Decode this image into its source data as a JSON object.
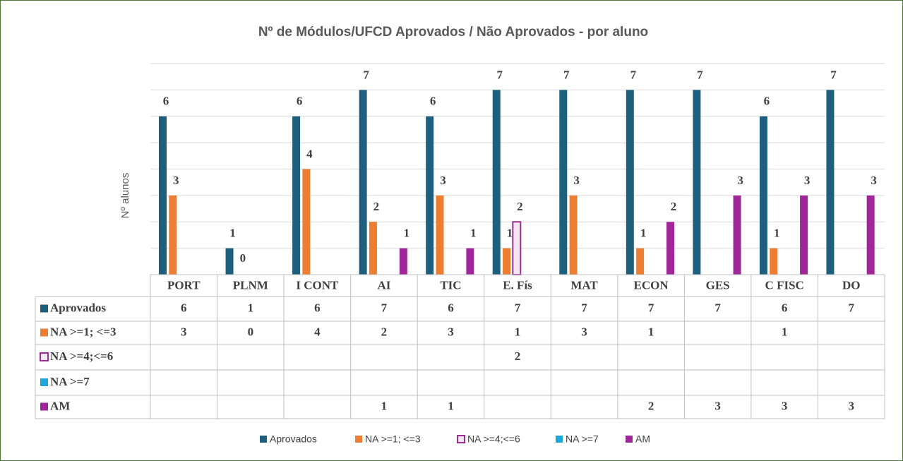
{
  "chart_data": {
    "type": "bar",
    "title": "Nº de Módulos/UFCD Aprovados / Não Aprovados - por aluno",
    "y_label": "Nº alunos",
    "categories": [
      "PORT",
      "PLNM",
      "I CONT",
      "AI",
      "TIC",
      "E. Fís",
      "MAT",
      "ECON",
      "GES",
      "C FISC",
      "DO"
    ],
    "series": [
      {
        "name": "Aprovados",
        "color": "#1f5f7e",
        "values": [
          6,
          1,
          6,
          7,
          6,
          7,
          7,
          7,
          7,
          6,
          7
        ]
      },
      {
        "name": "NA >=1; <=3",
        "color": "#ed7d31",
        "values": [
          3,
          0,
          4,
          2,
          3,
          1,
          3,
          1,
          null,
          1,
          null
        ]
      },
      {
        "name": "NA >=4;<=6",
        "color": "#9b2d93",
        "fill": "#f3e8f2",
        "values": [
          null,
          null,
          null,
          null,
          null,
          2,
          null,
          null,
          null,
          null,
          null
        ]
      },
      {
        "name": "NA >=7",
        "color": "#1ea7d8",
        "values": [
          null,
          null,
          null,
          null,
          null,
          null,
          null,
          null,
          null,
          null,
          null
        ]
      },
      {
        "name": "AM",
        "color": "#a0269a",
        "values": [
          null,
          null,
          null,
          1,
          1,
          null,
          null,
          2,
          3,
          3,
          3
        ]
      }
    ],
    "ylim": [
      0,
      8
    ],
    "yticks": [
      0,
      1,
      2,
      3,
      4,
      5,
      6,
      7,
      8
    ],
    "grid": true,
    "data_table": true,
    "legend": "bottom"
  }
}
